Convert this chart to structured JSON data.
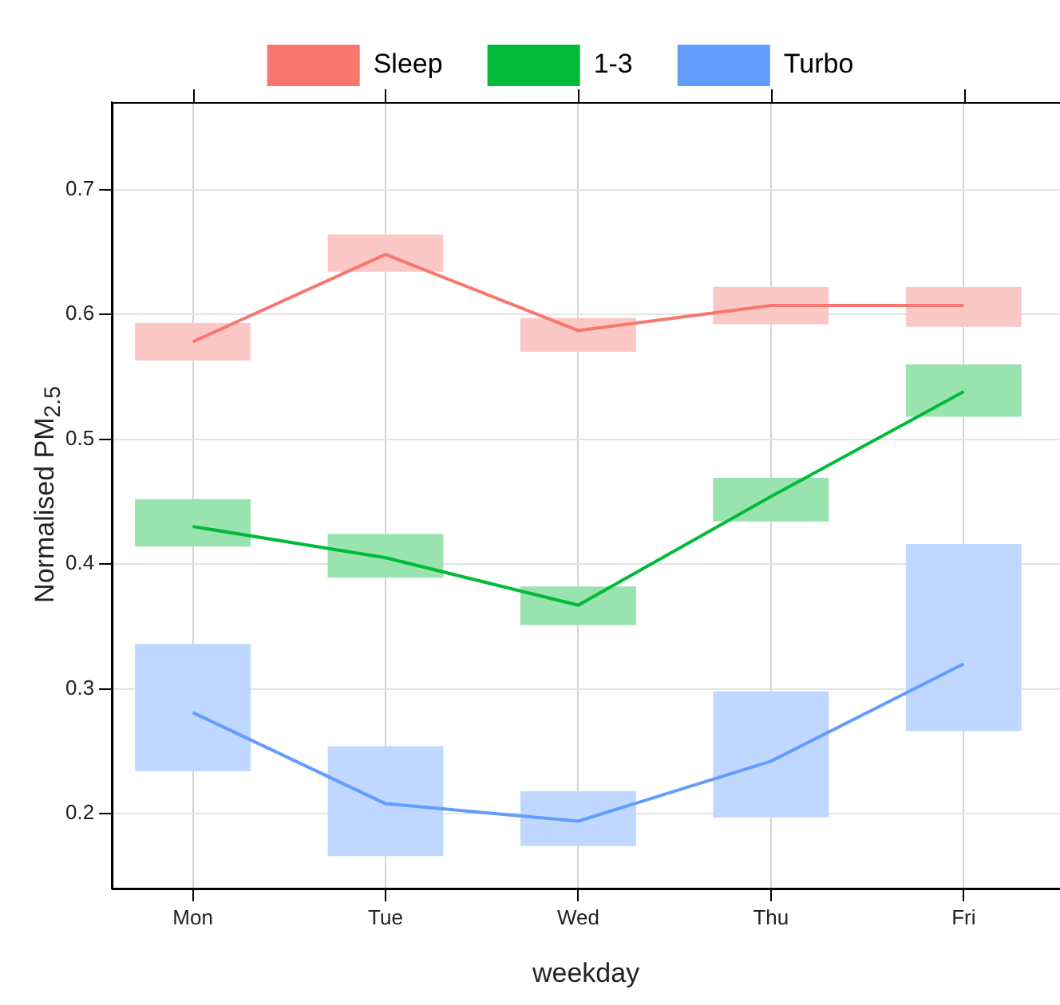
{
  "chart_data": {
    "type": "line",
    "xlabel": "weekday",
    "ylabel": "Normalised PM$_{2.5}$",
    "categories": [
      "Mon",
      "Tue",
      "Wed",
      "Thu",
      "Fri"
    ],
    "series": [
      {
        "type": "bar",
        "color": "#fcc8c5",
        "base": [
          0.563,
          0.634,
          0.57,
          0.592,
          0.59
        ],
        "values": [
          0.03,
          0.03,
          0.027,
          0.03,
          0.032
        ]
      },
      {
        "type": "bar",
        "color": "#99e3af",
        "base": [
          0.414,
          0.389,
          0.351,
          0.434,
          0.518
        ],
        "values": [
          0.038,
          0.035,
          0.031,
          0.035,
          0.042
        ]
      },
      {
        "type": "bar",
        "color": "#c0d7ff",
        "base": [
          0.234,
          0.166,
          0.174,
          0.197,
          0.266
        ],
        "values": [
          0.102,
          0.088,
          0.044,
          0.101,
          0.15
        ]
      },
      {
        "name": "Sleep",
        "color": "#f8766d",
        "values": [
          0.578,
          0.648,
          0.587,
          0.607,
          0.607
        ]
      },
      {
        "name": "1-3",
        "color": "#00ba38",
        "values": [
          0.43,
          0.405,
          0.367,
          0.454,
          0.538
        ]
      },
      {
        "name": "Turbo",
        "color": "#619cff",
        "values": [
          0.281,
          0.208,
          0.194,
          0.242,
          0.32
        ]
      }
    ],
    "ylim": [
      0.14,
      0.77
    ],
    "yticks": [
      0.2,
      0.3,
      0.4,
      0.5,
      0.6,
      0.7
    ],
    "grid": true,
    "legend": "top",
    "marker": "none",
    "line_style": "solid"
  }
}
